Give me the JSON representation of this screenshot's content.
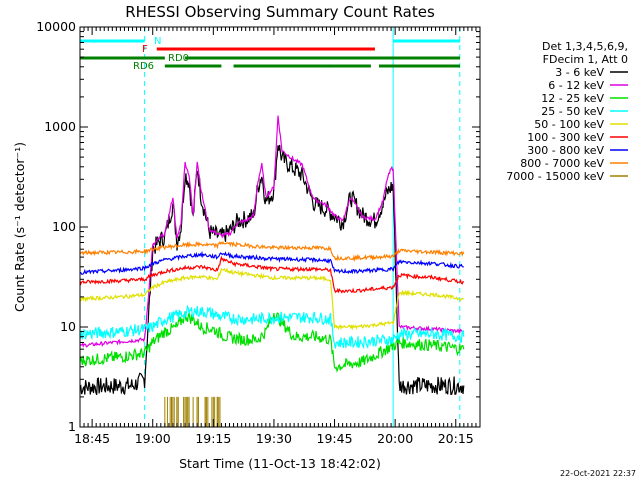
{
  "chart_data": {
    "type": "line",
    "title": "RHESSI Observing Summary Count Rates",
    "xlabel": "Start Time (11-Oct-13 18:42:02)",
    "ylabel": "Count Rate (s⁻¹ detector⁻¹)",
    "yscale": "log",
    "ylim": [
      1,
      10000
    ],
    "xlim_minutes": [
      18.7,
      20.35
    ],
    "xticks": [
      "18:45",
      "19:00",
      "19:15",
      "19:30",
      "19:45",
      "20:00",
      "20:15"
    ],
    "yticks": [
      "1",
      "10",
      "100",
      "1000",
      "10000"
    ],
    "legend_header": [
      "Det 1,3,4,5,6,9,",
      "FDecim 1, Att 0"
    ],
    "legend_position": "right",
    "series": [
      {
        "name": "3 - 6 keV",
        "color": "#000000",
        "x": [
          "18:42",
          "18:55",
          "18:58",
          "19:00",
          "19:02",
          "19:03",
          "19:05",
          "19:06",
          "19:07",
          "19:08",
          "19:09",
          "19:10",
          "19:11",
          "19:12",
          "19:14",
          "19:15",
          "19:17",
          "19:19",
          "19:21",
          "19:23",
          "19:25",
          "19:26",
          "19:27",
          "19:28",
          "19:30",
          "19:31",
          "19:32",
          "19:35",
          "19:37",
          "19:39",
          "19:40",
          "19:43",
          "19:45",
          "19:47",
          "19:49",
          "19:52",
          "19:55",
          "19:57",
          "19:58",
          "19:59",
          "19:59.5",
          "20:01",
          "20:10",
          "20:17"
        ],
        "values": [
          2.5,
          2.6,
          3,
          60,
          75,
          80,
          170,
          70,
          100,
          340,
          280,
          120,
          400,
          200,
          90,
          85,
          80,
          90,
          115,
          120,
          130,
          250,
          330,
          180,
          230,
          700,
          480,
          380,
          330,
          210,
          170,
          150,
          130,
          110,
          200,
          130,
          115,
          170,
          220,
          250,
          260,
          2.6,
          2.6,
          2.6
        ]
      },
      {
        "name": "6 - 12 keV",
        "color": "#e000e0",
        "x": [
          "18:42",
          "18:58",
          "19:00",
          "19:02",
          "19:03",
          "19:05",
          "19:06",
          "19:07",
          "19:08",
          "19:09",
          "19:10",
          "19:11",
          "19:12",
          "19:14",
          "19:15",
          "19:17",
          "19:19",
          "19:21",
          "19:23",
          "19:25",
          "19:26",
          "19:27",
          "19:28",
          "19:30",
          "19:31",
          "19:32",
          "19:35",
          "19:37",
          "19:39",
          "19:40",
          "19:43",
          "19:45",
          "19:47",
          "19:49",
          "19:52",
          "19:55",
          "19:57",
          "19:58",
          "19:59",
          "19:59.5",
          "20:01",
          "20:10",
          "20:17"
        ],
        "values": [
          6.5,
          7.5,
          65,
          80,
          85,
          200,
          75,
          110,
          440,
          330,
          130,
          460,
          230,
          95,
          90,
          82,
          85,
          110,
          115,
          130,
          280,
          420,
          200,
          250,
          1300,
          580,
          470,
          420,
          230,
          190,
          165,
          130,
          115,
          200,
          125,
          120,
          180,
          300,
          380,
          390,
          10,
          9.5,
          9
        ]
      },
      {
        "name": "12 - 25 keV",
        "color": "#00e000",
        "x": [
          "18:42",
          "18:52",
          "18:58",
          "19:00",
          "19:03",
          "19:06",
          "19:08",
          "19:10",
          "19:12",
          "19:15",
          "19:18",
          "19:22",
          "19:26",
          "19:28",
          "19:30",
          "19:32",
          "19:35",
          "19:40",
          "19:44",
          "19:45",
          "19:48",
          "19:52",
          "19:56",
          "19:59.5",
          "20:01",
          "20:10",
          "20:17"
        ],
        "values": [
          4.6,
          5,
          5.5,
          7,
          9,
          10,
          13,
          12,
          10,
          9.5,
          8,
          7.5,
          7.5,
          9,
          14,
          11,
          8,
          8,
          7.5,
          4,
          4.2,
          4.5,
          5.5,
          6.5,
          7,
          6.5,
          6
        ]
      },
      {
        "name": "25 - 50 keV",
        "color": "#00ffff",
        "x": [
          "18:42",
          "18:52",
          "18:58",
          "19:00",
          "19:03",
          "19:06",
          "19:10",
          "19:14",
          "19:16",
          "19:18",
          "19:22",
          "19:26",
          "19:30",
          "19:35",
          "19:40",
          "19:44",
          "19:45",
          "19:50",
          "19:55",
          "19:59.5",
          "20:01",
          "20:10",
          "20:17"
        ],
        "values": [
          8.5,
          9,
          9.5,
          10,
          12,
          13,
          14.5,
          14,
          13,
          12.5,
          12,
          12,
          12.5,
          12.5,
          12.5,
          12,
          7,
          7,
          7.3,
          7.5,
          8.5,
          8.5,
          8
        ]
      },
      {
        "name": "50 - 100 keV",
        "color": "#e0e000",
        "x": [
          "18:42",
          "18:52",
          "18:58",
          "19:00",
          "19:03",
          "19:08",
          "19:12",
          "19:16",
          "19:17",
          "19:20",
          "19:30",
          "19:40",
          "19:44",
          "19:45",
          "19:50",
          "19:55",
          "19:59.5",
          "20:01",
          "20:10",
          "20:17"
        ],
        "values": [
          19,
          20,
          21,
          25,
          28,
          31,
          32,
          30,
          38,
          35,
          31,
          31,
          30,
          10,
          10,
          10.5,
          11,
          22,
          21,
          19
        ]
      },
      {
        "name": "100 - 300 keV",
        "color": "#ff0000",
        "x": [
          "18:42",
          "18:52",
          "18:58",
          "19:00",
          "19:03",
          "19:08",
          "19:12",
          "19:16",
          "19:17",
          "19:20",
          "19:30",
          "19:40",
          "19:44",
          "19:45",
          "19:50",
          "19:55",
          "19:59.5",
          "20:01",
          "20:10",
          "20:17"
        ],
        "values": [
          28,
          29,
          30,
          33,
          36,
          39,
          40,
          37,
          48,
          43,
          38,
          38,
          37,
          23,
          23,
          24,
          25,
          33,
          31,
          28
        ]
      },
      {
        "name": "300 - 800 keV",
        "color": "#0000ff",
        "x": [
          "18:42",
          "18:52",
          "18:58",
          "19:00",
          "19:03",
          "19:08",
          "19:12",
          "19:16",
          "19:17",
          "19:20",
          "19:30",
          "19:40",
          "19:44",
          "19:45",
          "19:50",
          "19:55",
          "19:59.5",
          "20:01",
          "20:10",
          "20:17"
        ],
        "values": [
          35,
          37,
          39,
          43,
          47,
          51,
          53,
          50,
          55,
          51,
          48,
          47,
          46,
          36,
          36,
          37,
          38,
          45,
          43,
          40
        ]
      },
      {
        "name": "800 - 7000 keV",
        "color": "#ff8000",
        "x": [
          "18:42",
          "18:52",
          "18:58",
          "19:00",
          "19:03",
          "19:08",
          "19:12",
          "19:16",
          "19:17",
          "19:20",
          "19:30",
          "19:40",
          "19:44",
          "19:45",
          "19:50",
          "19:55",
          "19:59.5",
          "20:01",
          "20:10",
          "20:17"
        ],
        "values": [
          55,
          56,
          57,
          60,
          63,
          66,
          67,
          65,
          70,
          67,
          62,
          62,
          61,
          49,
          49,
          50,
          51,
          58,
          56,
          54
        ]
      },
      {
        "name": "7000 - 15000 keV",
        "color": "#a08000",
        "x": [
          "19:03",
          "19:04",
          "19:05",
          "19:06",
          "19:07",
          "19:08",
          "19:09",
          "19:10",
          "19:11",
          "19:12",
          "19:13",
          "19:14",
          "19:15",
          "19:16",
          "19:17"
        ],
        "values": [
          2,
          2,
          2,
          2,
          2,
          2,
          2,
          2,
          2,
          2,
          2,
          2,
          2,
          2,
          2
        ]
      }
    ],
    "flag_bars": [
      {
        "label": "N",
        "color": "#00ffff",
        "segments": [
          [
            "18:42",
            "18:58"
          ],
          [
            "19:59.5",
            "20:17"
          ]
        ]
      },
      {
        "label": "F",
        "color": "#ff0000",
        "segments": [
          [
            "19:01",
            "19:55"
          ]
        ]
      },
      {
        "label": "RD0",
        "color": "#008000",
        "segments": [
          [
            "18:42",
            "19:03"
          ],
          [
            "19:08",
            "20:17"
          ]
        ]
      },
      {
        "label": "RD6",
        "color": "#008000",
        "segments": [
          [
            "19:03",
            "19:17"
          ],
          [
            "19:20",
            "19:45"
          ],
          [
            "19:45",
            "19:54"
          ],
          [
            "19:56",
            "20:17"
          ]
        ]
      }
    ],
    "verticals": [
      {
        "t": "18:42",
        "style": "solid"
      },
      {
        "t": "18:58",
        "style": "dashed"
      },
      {
        "t": "19:59.5",
        "style": "solid"
      },
      {
        "t": "20:16",
        "style": "dashed"
      }
    ]
  },
  "footer": {
    "timestamp": "22-Oct-2021 22:37"
  }
}
